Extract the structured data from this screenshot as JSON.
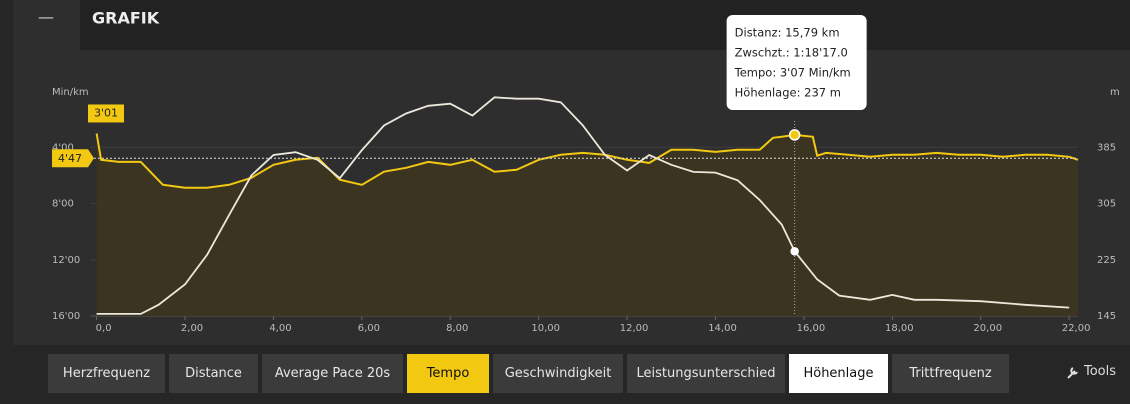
{
  "header": {
    "button": "—",
    "title": "GRAFIK"
  },
  "chart_data": {
    "type": "line",
    "ylabel": "Min/km",
    "y2label": "m",
    "xlim": [
      -0.15,
      22.2
    ],
    "xticks": [
      {
        "value": 0,
        "label": "0,0"
      },
      {
        "value": 2,
        "label": "2,00"
      },
      {
        "value": 4,
        "label": "4,00"
      },
      {
        "value": 6,
        "label": "6,00"
      },
      {
        "value": 8,
        "label": "8,00"
      },
      {
        "value": 10,
        "label": "10,00"
      },
      {
        "value": 12,
        "label": "12,00"
      },
      {
        "value": 14,
        "label": "14,00"
      },
      {
        "value": 16,
        "label": "16,00"
      },
      {
        "value": 18,
        "label": "18,00"
      },
      {
        "value": 20,
        "label": "20,00"
      },
      {
        "value": 22,
        "label": "22,00"
      }
    ],
    "ylim": [
      16,
      0
    ],
    "yticks": [
      {
        "value": 4,
        "label": "4'00"
      },
      {
        "value": 8,
        "label": "8'00"
      },
      {
        "value": 12,
        "label": "12'00"
      },
      {
        "value": 16,
        "label": "16'00"
      }
    ],
    "y2lim": [
      145,
      465
    ],
    "y2ticks": [
      145,
      225,
      305,
      385
    ],
    "grid": true,
    "series": [
      {
        "name": "Tempo",
        "color": "#f2c811",
        "fill": "#3a3421",
        "x": [
          0,
          0.1,
          0.5,
          1,
          1.5,
          2,
          2.5,
          3,
          3.5,
          4,
          4.5,
          5,
          5.5,
          6,
          6.5,
          7,
          7.5,
          8,
          8.5,
          9,
          9.5,
          10,
          10.5,
          11,
          11.5,
          12,
          12.5,
          13,
          13.5,
          14,
          14.5,
          15,
          15.3,
          15.5,
          15.79,
          16.2,
          16.3,
          16.5,
          17,
          17.5,
          18,
          18.5,
          19,
          19.5,
          20,
          20.5,
          21,
          21.5,
          22,
          22.2
        ],
        "values": [
          3.02,
          4.89,
          5.04,
          5.04,
          6.67,
          6.88,
          6.88,
          6.67,
          6.17,
          5.25,
          4.89,
          4.75,
          6.31,
          6.67,
          5.74,
          5.46,
          5.04,
          5.25,
          4.89,
          5.74,
          5.6,
          4.89,
          4.54,
          4.4,
          4.54,
          4.89,
          5.11,
          4.18,
          4.18,
          4.33,
          4.18,
          4.18,
          3.33,
          3.26,
          3.12,
          3.26,
          4.6,
          4.4,
          4.54,
          4.68,
          4.54,
          4.54,
          4.4,
          4.54,
          4.54,
          4.68,
          4.54,
          4.54,
          4.68,
          4.89
        ]
      },
      {
        "name": "Höhenlage",
        "color": "#ece8dc",
        "axis": "y2",
        "x": [
          0,
          1,
          1.4,
          2,
          2.5,
          3,
          3.5,
          4,
          4.5,
          5,
          5.5,
          6,
          6.5,
          7,
          7.5,
          8,
          8.5,
          9,
          9.5,
          10,
          10.5,
          11,
          11.5,
          12,
          12.5,
          13,
          13.5,
          14,
          14.5,
          15,
          15.5,
          15.79,
          16.3,
          16.8,
          17.5,
          18,
          18.5,
          19,
          20,
          21,
          22
        ],
        "values": [
          148,
          148,
          161,
          190,
          232,
          289,
          345,
          374,
          378,
          367,
          341,
          381,
          416,
          433,
          444,
          447,
          430,
          456,
          454,
          454,
          449,
          416,
          374,
          352,
          374,
          360,
          350,
          349,
          338,
          310,
          275,
          237,
          197,
          174,
          168,
          175,
          168,
          168,
          166,
          161,
          157
        ]
      }
    ],
    "max_label": {
      "value": 3.02,
      "label": "3'01"
    },
    "average": {
      "value": 4.78,
      "label": "4'47"
    },
    "tooltip": {
      "x": 15.79,
      "lines": [
        "Distanz: 15,79 km",
        "Zwschzt.: 1:18'17.0",
        "Tempo: 3'07 Min/km",
        "Höhenlage: 237 m"
      ]
    }
  },
  "tabs": [
    {
      "label": "Herzfrequenz"
    },
    {
      "label": "Distance"
    },
    {
      "label": "Average Pace 20s"
    },
    {
      "label": "Tempo",
      "color": "#f2c811"
    },
    {
      "label": "Geschwindigkeit"
    },
    {
      "label": "Leistungsunterschied"
    },
    {
      "label": "Höhenlage",
      "color": "#ffffff"
    },
    {
      "label": "Trittfrequenz"
    }
  ],
  "tools": "Tools"
}
